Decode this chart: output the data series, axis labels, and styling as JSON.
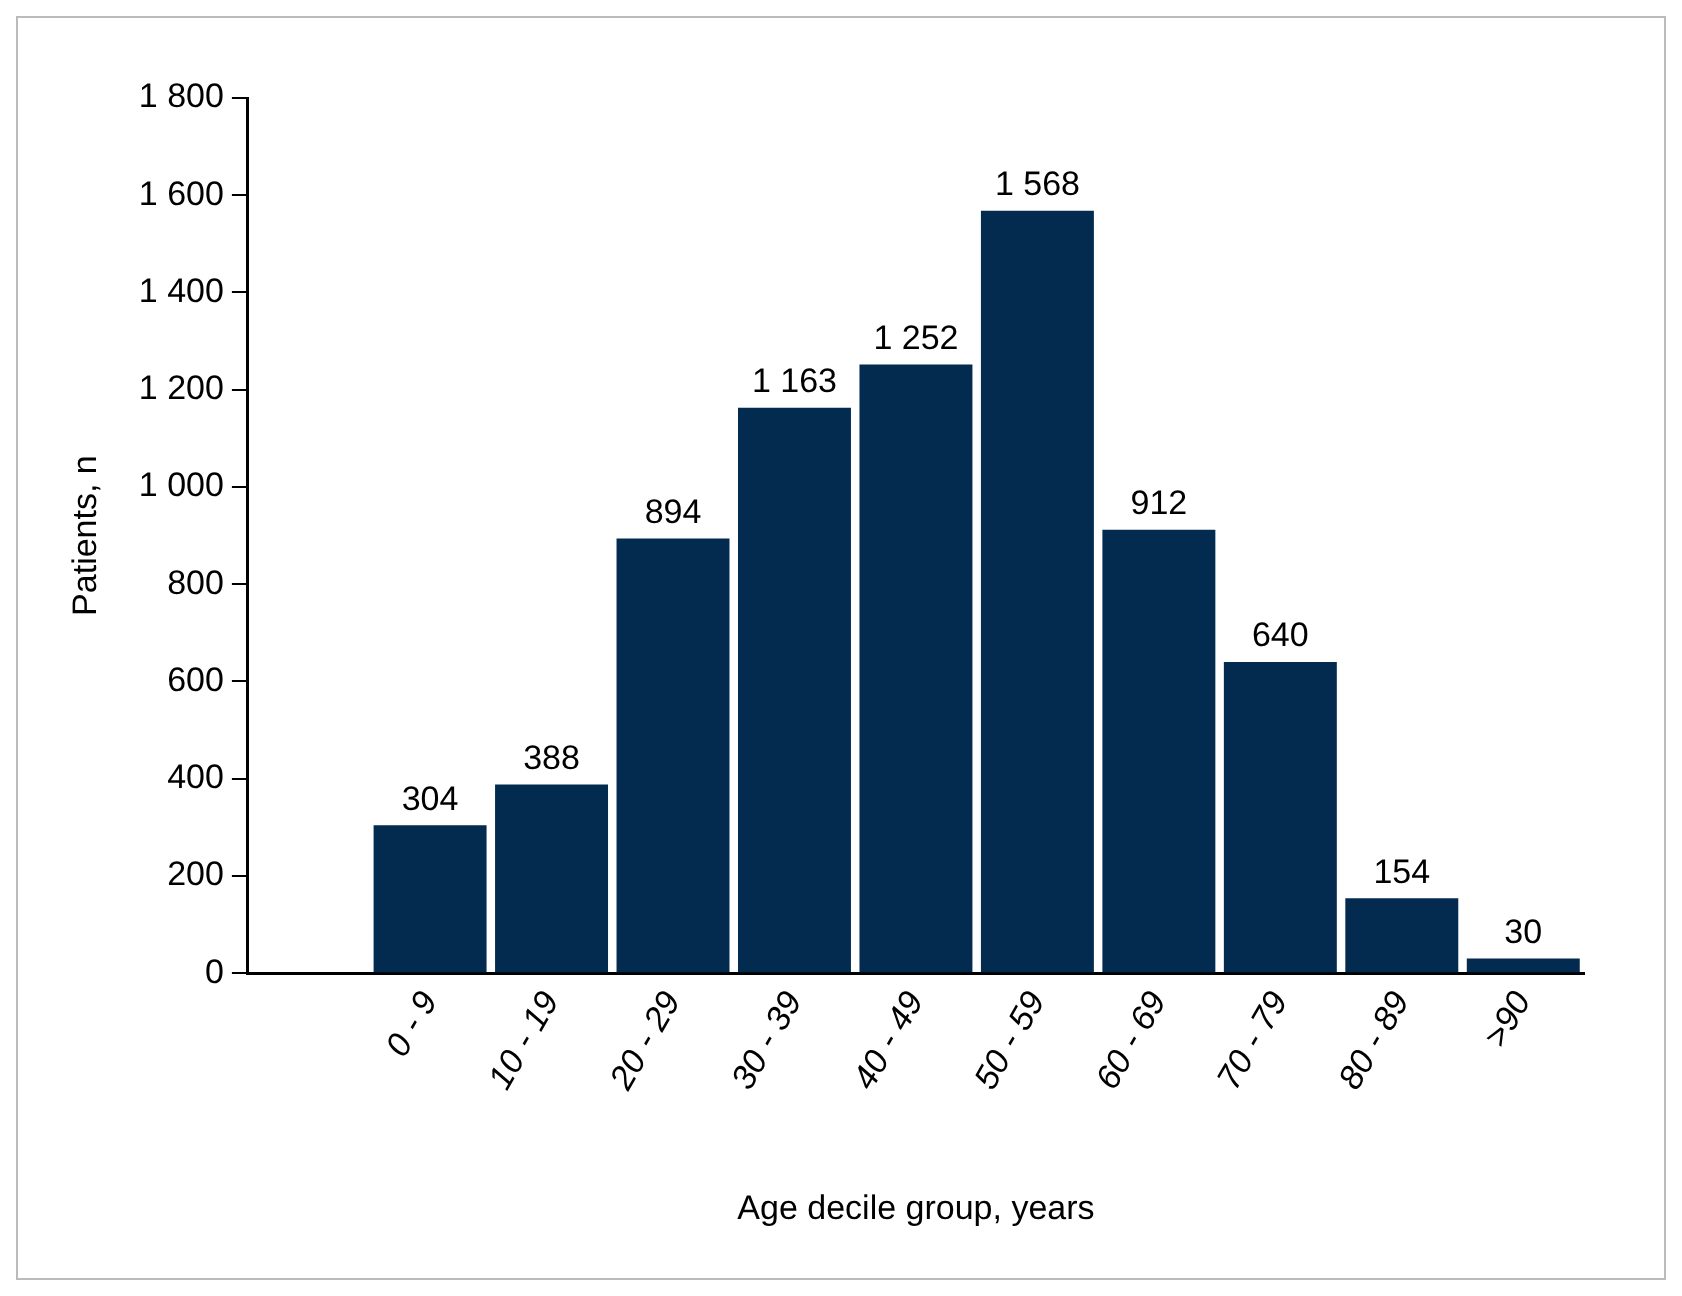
{
  "chart_data": {
    "type": "bar",
    "xlabel": "Age decile group, years",
    "ylabel": "Patients, n",
    "categories": [
      null,
      "0 - 9",
      "10 - 19",
      "20 - 29",
      "30 - 39",
      "40 - 49",
      "50 - 59",
      "60 - 69",
      "70 - 79",
      "80 - 89",
      ">90"
    ],
    "values": [
      null,
      304,
      388,
      894,
      1163,
      1252,
      1568,
      912,
      640,
      154,
      30
    ],
    "value_labels": [
      null,
      "304",
      "388",
      "894",
      "1 163",
      "1 252",
      "1 568",
      "912",
      "640",
      "154",
      "30"
    ],
    "color": "#022b4f",
    "ylim": [
      0,
      1800
    ],
    "yticks": [
      0,
      200,
      400,
      600,
      800,
      {
        "value": 1000,
        "label": "1 000"
      },
      {
        "value": 1200,
        "label": "1 200"
      },
      {
        "value": 1400,
        "label": "1 400"
      },
      {
        "value": 1600,
        "label": "1 600"
      },
      {
        "value": 1800,
        "label": "1 800"
      }
    ]
  }
}
